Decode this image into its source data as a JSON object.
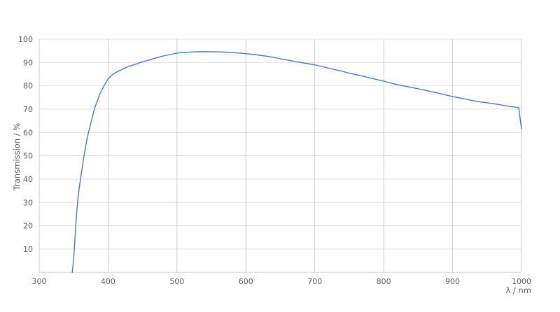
{
  "chart_data": {
    "type": "line",
    "title": "",
    "xlabel": "λ / nm",
    "ylabel": "Transmission / %",
    "xlim": [
      300,
      1000
    ],
    "ylim": [
      0,
      100
    ],
    "x_ticks": [
      300,
      400,
      500,
      600,
      700,
      800,
      900,
      1000
    ],
    "y_ticks": [
      10,
      20,
      30,
      40,
      50,
      60,
      70,
      80,
      90,
      100
    ],
    "grid": true,
    "legend": "none",
    "colors": {
      "line": "#4678d2",
      "h_grid": "#e3e3e3",
      "v_grid": "#cdcdcd",
      "axis_bottom": "#d9d9d9",
      "tick_text": "#5f5f5f",
      "background": "#ffffff"
    },
    "series": [
      {
        "name": "Transmission",
        "x": [
          348,
          349,
          350,
          351,
          352,
          353,
          354,
          356,
          358,
          360,
          362,
          365,
          368,
          370,
          372,
          375,
          378,
          380,
          383,
          385,
          388,
          390,
          393,
          395,
          398,
          400,
          405,
          410,
          415,
          420,
          425,
          430,
          435,
          440,
          445,
          450,
          455,
          460,
          465,
          470,
          475,
          480,
          485,
          490,
          495,
          500,
          505,
          510,
          515,
          520,
          530,
          540,
          550,
          560,
          570,
          580,
          590,
          600,
          610,
          620,
          630,
          640,
          650,
          660,
          670,
          680,
          690,
          700,
          710,
          720,
          730,
          740,
          750,
          760,
          770,
          780,
          790,
          800,
          810,
          820,
          830,
          840,
          850,
          860,
          870,
          880,
          890,
          900,
          910,
          920,
          930,
          940,
          950,
          955,
          960,
          970,
          980,
          990,
          996,
          1000
        ],
        "y": [
          0,
          3,
          6,
          10,
          15,
          20,
          24,
          31,
          36,
          40,
          44,
          50,
          55,
          58,
          60.5,
          64,
          67.5,
          70,
          72.5,
          74,
          76.5,
          77.5,
          79.5,
          80.5,
          82,
          83,
          84.4,
          85.5,
          86.3,
          87,
          87.7,
          88.3,
          88.8,
          89.3,
          89.8,
          90.3,
          90.7,
          91.1,
          91.6,
          92,
          92.4,
          92.8,
          93.1,
          93.4,
          93.7,
          94,
          94.2,
          94.3,
          94.4,
          94.5,
          94.6,
          94.65,
          94.6,
          94.55,
          94.45,
          94.25,
          94.05,
          93.8,
          93.5,
          93.1,
          92.7,
          92.2,
          91.6,
          91.1,
          90.5,
          90,
          89.5,
          89,
          88.3,
          87.6,
          86.9,
          86.2,
          85.4,
          84.8,
          84.1,
          83.4,
          82.7,
          82,
          81.2,
          80.5,
          79.9,
          79.3,
          78.7,
          78.1,
          77.4,
          76.8,
          76.1,
          75.4,
          74.8,
          74.2,
          73.6,
          73.1,
          72.7,
          72.5,
          72.3,
          71.8,
          71.3,
          70.9,
          70.6,
          61.5
        ]
      }
    ]
  }
}
